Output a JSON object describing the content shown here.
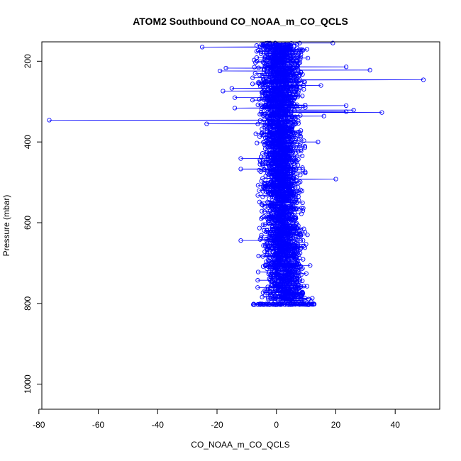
{
  "chart_data": {
    "type": "scatter",
    "title": "ATOM2 Southbound CO_NOAA_m_CO_QCLS",
    "xlabel": "CO_NOAA_m_CO_QCLS",
    "ylabel": "Pressure (mbar)",
    "xlim": [
      -79,
      55
    ],
    "ylim": [
      1062,
      152
    ],
    "y_axis_inverted": true,
    "grid": false,
    "legend": "none",
    "marker": "open-circle",
    "connected_by_lines": true,
    "series_color": "#0000ff",
    "xticks": [
      -80,
      -60,
      -40,
      -20,
      0,
      20,
      40
    ],
    "yticks": [
      200,
      400,
      600,
      800,
      1000
    ],
    "outliers": [
      {
        "x": -76.5,
        "y": 346
      },
      {
        "x": -23.5,
        "y": 355
      },
      {
        "x": -25,
        "y": 165
      },
      {
        "x": -19,
        "y": 224
      },
      {
        "x": -17,
        "y": 217
      },
      {
        "x": -18,
        "y": 274
      },
      {
        "x": -15,
        "y": 267
      },
      {
        "x": -14,
        "y": 290
      },
      {
        "x": -14,
        "y": 316
      },
      {
        "x": -12,
        "y": 441
      },
      {
        "x": -12,
        "y": 467
      },
      {
        "x": -12,
        "y": 644
      },
      {
        "x": 49.5,
        "y": 246
      },
      {
        "x": 35.5,
        "y": 327
      },
      {
        "x": 31.5,
        "y": 222
      },
      {
        "x": 26,
        "y": 321
      },
      {
        "x": 23.5,
        "y": 214
      },
      {
        "x": 23.5,
        "y": 310
      },
      {
        "x": 23.5,
        "y": 325
      },
      {
        "x": 20,
        "y": 492
      },
      {
        "x": 19,
        "y": 155
      },
      {
        "x": 16,
        "y": 336
      },
      {
        "x": 15,
        "y": 260
      },
      {
        "x": 14,
        "y": 400
      }
    ],
    "core_profile": [
      {
        "p": 160,
        "center": 1.5,
        "half_width": 8
      },
      {
        "p": 300,
        "center": 1.0,
        "half_width": 8
      },
      {
        "p": 420,
        "center": 1.5,
        "half_width": 7
      },
      {
        "p": 600,
        "center": 2.0,
        "half_width": 7
      },
      {
        "p": 720,
        "center": 2.5,
        "half_width": 8
      },
      {
        "p": 790,
        "center": 3.0,
        "half_width": 9
      }
    ],
    "bottom_level": {
      "p": 802,
      "xmin": -8,
      "xmax": 14
    },
    "approx_point_count": 2600
  }
}
